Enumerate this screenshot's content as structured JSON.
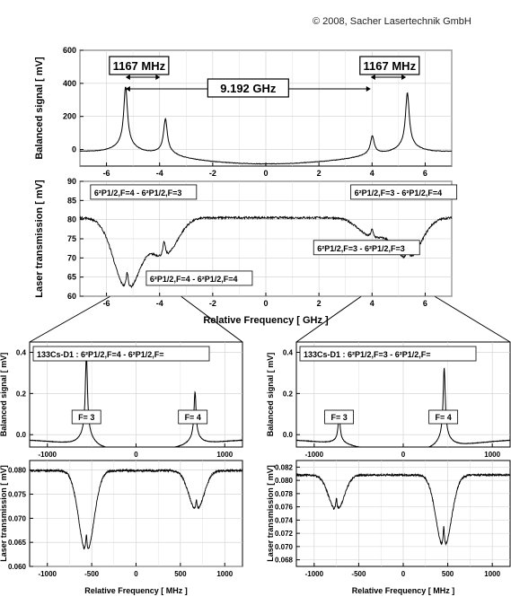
{
  "copyright": "© 2008, Sacher Lasertechnik GmbH",
  "chart_data": [
    {
      "name": "overview-balanced",
      "type": "line",
      "ylabel": "Balanced signal [ mV]",
      "xlim": [
        -7,
        7
      ],
      "ylim": [
        -100,
        600
      ],
      "xticks": [
        -6,
        -4,
        -2,
        0,
        2,
        4,
        6
      ],
      "yticks": [
        0,
        200,
        400,
        600
      ],
      "annotations": [
        {
          "text": "1167 MHz",
          "x_from": -5.28,
          "x_to": -3.98
        },
        {
          "text": "1167 MHz",
          "x_from": 3.95,
          "x_to": 5.28
        },
        {
          "text": "9.192 GHz",
          "x_from": -5.28,
          "x_to": 3.95
        }
      ],
      "series": [
        {
          "peaks": [
            {
              "x": -5.28,
              "y": 340
            },
            {
              "x": -3.78,
              "y": 190
            },
            {
              "x": 4.01,
              "y": 100
            },
            {
              "x": 5.33,
              "y": 310
            }
          ],
          "baseline": -5
        }
      ]
    },
    {
      "name": "overview-transmission",
      "type": "line",
      "xlabel": "Relative Frequency [ GHz ]",
      "ylabel": "Laser transmission [ mV]",
      "xlim": [
        -7,
        7
      ],
      "ylim": [
        60,
        90
      ],
      "xticks": [
        -6,
        -4,
        -2,
        0,
        2,
        4,
        6
      ],
      "yticks": [
        60,
        65,
        70,
        75,
        80,
        85,
        90
      ],
      "annotations": [
        {
          "text": "6²P1/2,F=4 - 6²P1/2,F=3",
          "x": -6.6,
          "y": 86.5
        },
        {
          "text": "6²P1/2,F=3 - 6²P1/2,F=4",
          "x": 3.2,
          "y": 86.5
        },
        {
          "text": "6²P1/2,F=3 - 6²P1/2,F=3",
          "x": 1.8,
          "y": 72
        },
        {
          "text": "6²P1/2,F=4 - 6²P1/2,F=4",
          "x": -4.5,
          "y": 64
        }
      ],
      "series": [
        {
          "dips": [
            {
              "x": -5.22,
              "y": 61.5,
              "sharp_y": 68
            },
            {
              "x": -3.83,
              "y": 70.5,
              "sharp_y": 76
            },
            {
              "x": 4.0,
              "y": 75.5,
              "sharp_y": 78.5
            },
            {
              "x": 5.34,
              "y": 69.5,
              "sharp_y": 75
            }
          ],
          "baseline": 80.5
        }
      ]
    },
    {
      "name": "detail-left-balanced",
      "type": "line",
      "ylabel": "Balanced signal [ mV]",
      "title": "133Cs-D1 :  6²P1/2,F=4 - 6²P1/2,F=",
      "xlim": [
        -1200,
        1200
      ],
      "ylim": [
        -0.06,
        0.45
      ],
      "xticks": [
        -1000,
        0,
        1000
      ],
      "yticks": [
        0.0,
        0.2,
        0.4
      ],
      "annotations": [
        {
          "text": "F= 3",
          "x": -560
        },
        {
          "text": "F= 4",
          "x": 640
        }
      ],
      "series": [
        {
          "peaks": [
            {
              "x": -560,
              "y": 0.36
            },
            {
              "x": 665,
              "y": 0.2
            }
          ],
          "baseline": -0.02
        }
      ]
    },
    {
      "name": "detail-left-transmission",
      "type": "line",
      "xlabel": "Relative Frequency [ MHz ]",
      "ylabel": "Laser transmission [ mV]",
      "xlim": [
        -1200,
        1200
      ],
      "ylim": [
        0.06,
        0.082
      ],
      "xticks": [
        -1000,
        -500,
        0,
        500,
        1000
      ],
      "yticks": [
        0.06,
        0.065,
        0.07,
        0.075,
        0.08
      ],
      "series": [
        {
          "dips": [
            {
              "x": -560,
              "y": 0.0625,
              "sharp_y": 0.068
            },
            {
              "x": 680,
              "y": 0.0715,
              "sharp_y": 0.0745
            }
          ],
          "baseline": 0.0799
        }
      ]
    },
    {
      "name": "detail-right-balanced",
      "type": "line",
      "ylabel": "Balanced signal [ mV]",
      "title": "133Cs-D1 :  6²P1/2,F=3 - 6²P1/2,F=",
      "xlim": [
        -1200,
        1200
      ],
      "ylim": [
        -0.06,
        0.45
      ],
      "xticks": [
        -1000,
        0,
        1000
      ],
      "yticks": [
        0.0,
        0.2,
        0.4
      ],
      "annotations": [
        {
          "text": "F= 3",
          "x": -720
        },
        {
          "text": "F= 4",
          "x": 450
        }
      ],
      "series": [
        {
          "peaks": [
            {
              "x": -720,
              "y": 0.1
            },
            {
              "x": 460,
              "y": 0.31
            }
          ],
          "baseline": -0.02
        }
      ]
    },
    {
      "name": "detail-right-transmission",
      "type": "line",
      "xlabel": "Relative Frequency [ MHz ]",
      "ylabel": "Laser transmission [ mV]",
      "xlim": [
        -1200,
        1200
      ],
      "ylim": [
        0.067,
        0.083
      ],
      "xticks": [
        -1000,
        -500,
        0,
        500,
        1000
      ],
      "yticks": [
        0.068,
        0.07,
        0.072,
        0.074,
        0.076,
        0.078,
        0.08,
        0.082
      ],
      "series": [
        {
          "dips": [
            {
              "x": -750,
              "y": 0.0753,
              "sharp_y": 0.078
            },
            {
              "x": 455,
              "y": 0.0695,
              "sharp_y": 0.0742
            }
          ],
          "baseline": 0.0808
        }
      ]
    }
  ]
}
